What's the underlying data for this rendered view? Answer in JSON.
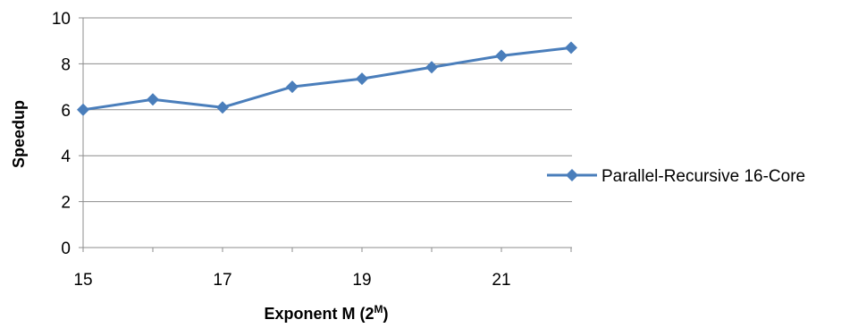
{
  "chart_data": {
    "type": "line",
    "x": [
      15,
      16,
      17,
      18,
      19,
      20,
      21,
      22
    ],
    "series": [
      {
        "name": "Parallel-Recursive 16-Core",
        "values": [
          6.0,
          6.45,
          6.1,
          7.0,
          7.35,
          7.85,
          8.35,
          8.7
        ],
        "color": "#4a7ebb",
        "marker": "diamond"
      }
    ],
    "xticks": [
      "15",
      "17",
      "19",
      "21"
    ],
    "yticks": [
      "0",
      "2",
      "4",
      "6",
      "8",
      "10"
    ],
    "xlabel": {
      "main": "Exponent M (2",
      "sup": "M",
      "end": ")"
    },
    "ylabel": "Speedup",
    "xlim": [
      15,
      22.5
    ],
    "ylim": [
      0,
      10
    ],
    "grid": "horizontal",
    "legend": "right"
  }
}
